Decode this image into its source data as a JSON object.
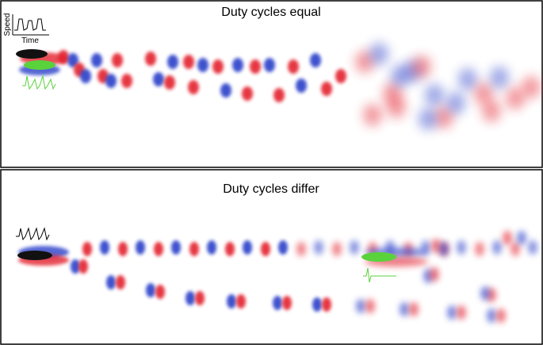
{
  "panels": [
    {
      "title": "Duty cycles equal",
      "inset": {
        "y_label": "Speed",
        "x_label": "Time"
      }
    },
    {
      "title": "Duty cycles differ"
    }
  ]
}
